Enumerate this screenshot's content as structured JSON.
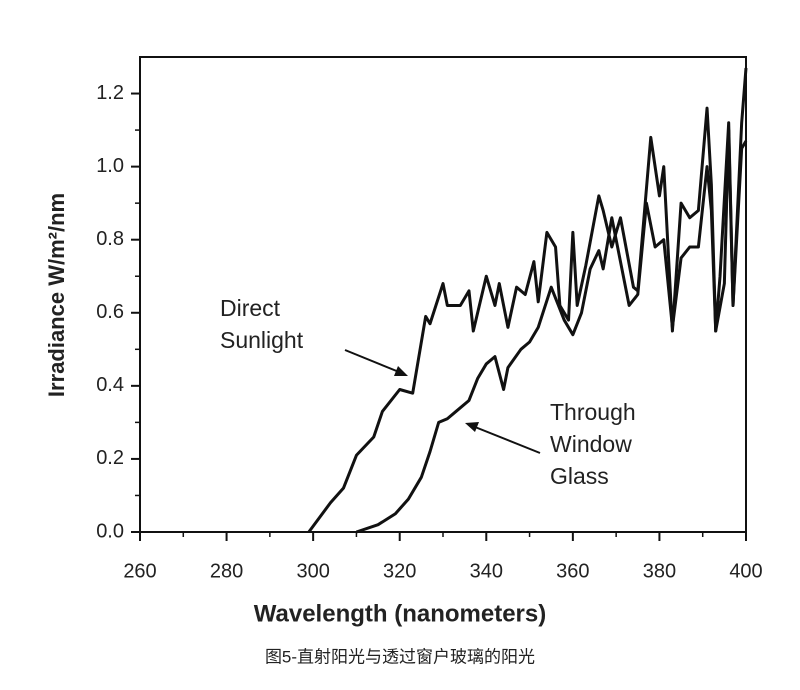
{
  "chart_data": {
    "type": "line",
    "caption": "图5-直射阳光与透过窗户玻璃的阳光",
    "xlabel": "Wavelength (nanometers)",
    "ylabel": "Irradiance  W/m²/nm",
    "xlim": [
      260,
      400
    ],
    "ylim": [
      0,
      1.3
    ],
    "xticks": [
      260,
      280,
      300,
      320,
      340,
      360,
      380,
      400
    ],
    "xminorticks": [
      270,
      290,
      310,
      330,
      350,
      370,
      390
    ],
    "yticks": [
      {
        "value": 0,
        "label": "0.0"
      },
      0.2,
      0.4,
      0.6,
      0.8,
      {
        "value": 1,
        "label": "1.0"
      },
      1.2
    ],
    "yminorticks": [
      0.1,
      0.3,
      0.5,
      0.7,
      0.9,
      1.1
    ],
    "grid": false,
    "annotations": [
      {
        "lines": [
          "Direct",
          "Sunlight"
        ]
      },
      {
        "lines": [
          "Through",
          "Window",
          "Glass"
        ]
      }
    ],
    "series": [
      {
        "name": "Direct Sunlight",
        "color": "#111111",
        "x": [
          299,
          304,
          307,
          310,
          314,
          316,
          320,
          323,
          326,
          327,
          330,
          331,
          334,
          336,
          337,
          340,
          342,
          343,
          345,
          347,
          349,
          351,
          352,
          354,
          356,
          357,
          359,
          360,
          361,
          363,
          366,
          367,
          369,
          371,
          374,
          375,
          378,
          380,
          381,
          383,
          385,
          387,
          389,
          391,
          392,
          393,
          394,
          396,
          397,
          399,
          400
        ],
        "values": [
          0,
          0.08,
          0.12,
          0.21,
          0.26,
          0.33,
          0.39,
          0.38,
          0.59,
          0.57,
          0.68,
          0.62,
          0.62,
          0.66,
          0.55,
          0.7,
          0.62,
          0.68,
          0.56,
          0.67,
          0.65,
          0.74,
          0.63,
          0.82,
          0.78,
          0.62,
          0.58,
          0.82,
          0.62,
          0.73,
          0.92,
          0.88,
          0.78,
          0.86,
          0.67,
          0.66,
          1.08,
          0.92,
          1.0,
          0.55,
          0.9,
          0.86,
          0.88,
          1.16,
          0.95,
          0.55,
          0.7,
          1.12,
          0.62,
          1.12,
          1.27
        ]
      },
      {
        "name": "Through Window Glass",
        "color": "#111111",
        "x": [
          310,
          315,
          319,
          322,
          325,
          327,
          329,
          331,
          333,
          336,
          338,
          340,
          342,
          344,
          345,
          348,
          350,
          352,
          355,
          357,
          358,
          360,
          362,
          364,
          366,
          367,
          369,
          371,
          373,
          375,
          377,
          379,
          381,
          383,
          385,
          387,
          389,
          391,
          392,
          393,
          395,
          396,
          397,
          399,
          400
        ],
        "values": [
          0,
          0.02,
          0.05,
          0.09,
          0.15,
          0.22,
          0.3,
          0.31,
          0.33,
          0.36,
          0.42,
          0.46,
          0.48,
          0.39,
          0.45,
          0.5,
          0.52,
          0.56,
          0.67,
          0.61,
          0.58,
          0.54,
          0.6,
          0.72,
          0.77,
          0.72,
          0.86,
          0.74,
          0.62,
          0.65,
          0.9,
          0.78,
          0.8,
          0.56,
          0.75,
          0.78,
          0.78,
          1.0,
          0.88,
          0.55,
          0.68,
          1.1,
          0.62,
          1.05,
          1.07
        ]
      }
    ]
  }
}
